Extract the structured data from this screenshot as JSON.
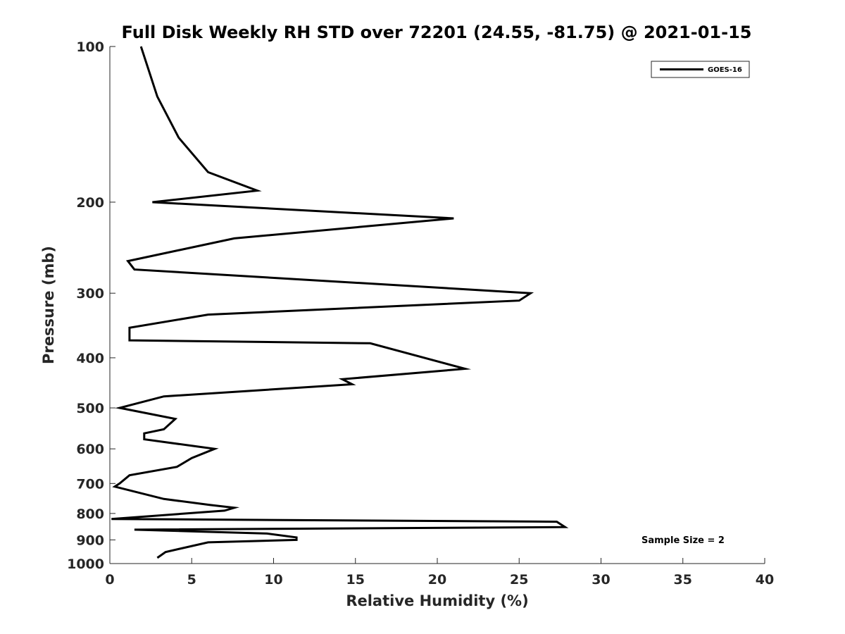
{
  "chart_data": {
    "type": "line",
    "title": "Full Disk Weekly RH STD over 72201 (24.55, -81.75) @ 2021-01-15",
    "xlabel": "Relative Humidity (%)",
    "ylabel": "Pressure (mb)",
    "xlim": [
      0,
      40
    ],
    "ylim": [
      100,
      1000
    ],
    "yscale": "log",
    "grid": false,
    "legend_position": "top-right",
    "x_ticks": [
      0,
      5,
      10,
      15,
      20,
      25,
      30,
      35,
      40
    ],
    "x_tick_labels": [
      "0",
      "5",
      "10",
      "15",
      "20",
      "25",
      "30",
      "35",
      "40"
    ],
    "y_ticks": [
      100,
      200,
      300,
      400,
      500,
      600,
      700,
      800,
      900,
      1000
    ],
    "y_tick_labels": [
      "100",
      "200",
      "300",
      "400",
      "500",
      "600",
      "700",
      "800",
      "900",
      "1000"
    ],
    "series": [
      {
        "name": "GOES-16",
        "color": "#000000",
        "points": [
          [
            1.9,
            100
          ],
          [
            2.9,
            125
          ],
          [
            4.2,
            150
          ],
          [
            6.0,
            175
          ],
          [
            9.0,
            190
          ],
          [
            2.6,
            200
          ],
          [
            21.0,
            215
          ],
          [
            7.6,
            235
          ],
          [
            1.1,
            260
          ],
          [
            1.5,
            270
          ],
          [
            25.7,
            300
          ],
          [
            25.0,
            310
          ],
          [
            6.0,
            330
          ],
          [
            1.2,
            350
          ],
          [
            1.2,
            370
          ],
          [
            15.9,
            375
          ],
          [
            21.7,
            420
          ],
          [
            14.2,
            440
          ],
          [
            14.8,
            450
          ],
          [
            3.3,
            475
          ],
          [
            0.6,
            500
          ],
          [
            4.0,
            525
          ],
          [
            3.3,
            550
          ],
          [
            2.1,
            560
          ],
          [
            2.1,
            575
          ],
          [
            6.4,
            600
          ],
          [
            5.0,
            625
          ],
          [
            4.1,
            650
          ],
          [
            1.2,
            675
          ],
          [
            0.6,
            700
          ],
          [
            0.3,
            710
          ],
          [
            3.3,
            750
          ],
          [
            6.1,
            770
          ],
          [
            7.6,
            780
          ],
          [
            7.0,
            790
          ],
          [
            0.1,
            820
          ],
          [
            27.3,
            830
          ],
          [
            27.8,
            850
          ],
          [
            1.5,
            860
          ],
          [
            9.6,
            875
          ],
          [
            11.4,
            890
          ],
          [
            11.4,
            900
          ],
          [
            6.0,
            910
          ],
          [
            3.4,
            950
          ],
          [
            2.9,
            975
          ]
        ]
      }
    ],
    "annotation": "Sample Size = 2"
  }
}
